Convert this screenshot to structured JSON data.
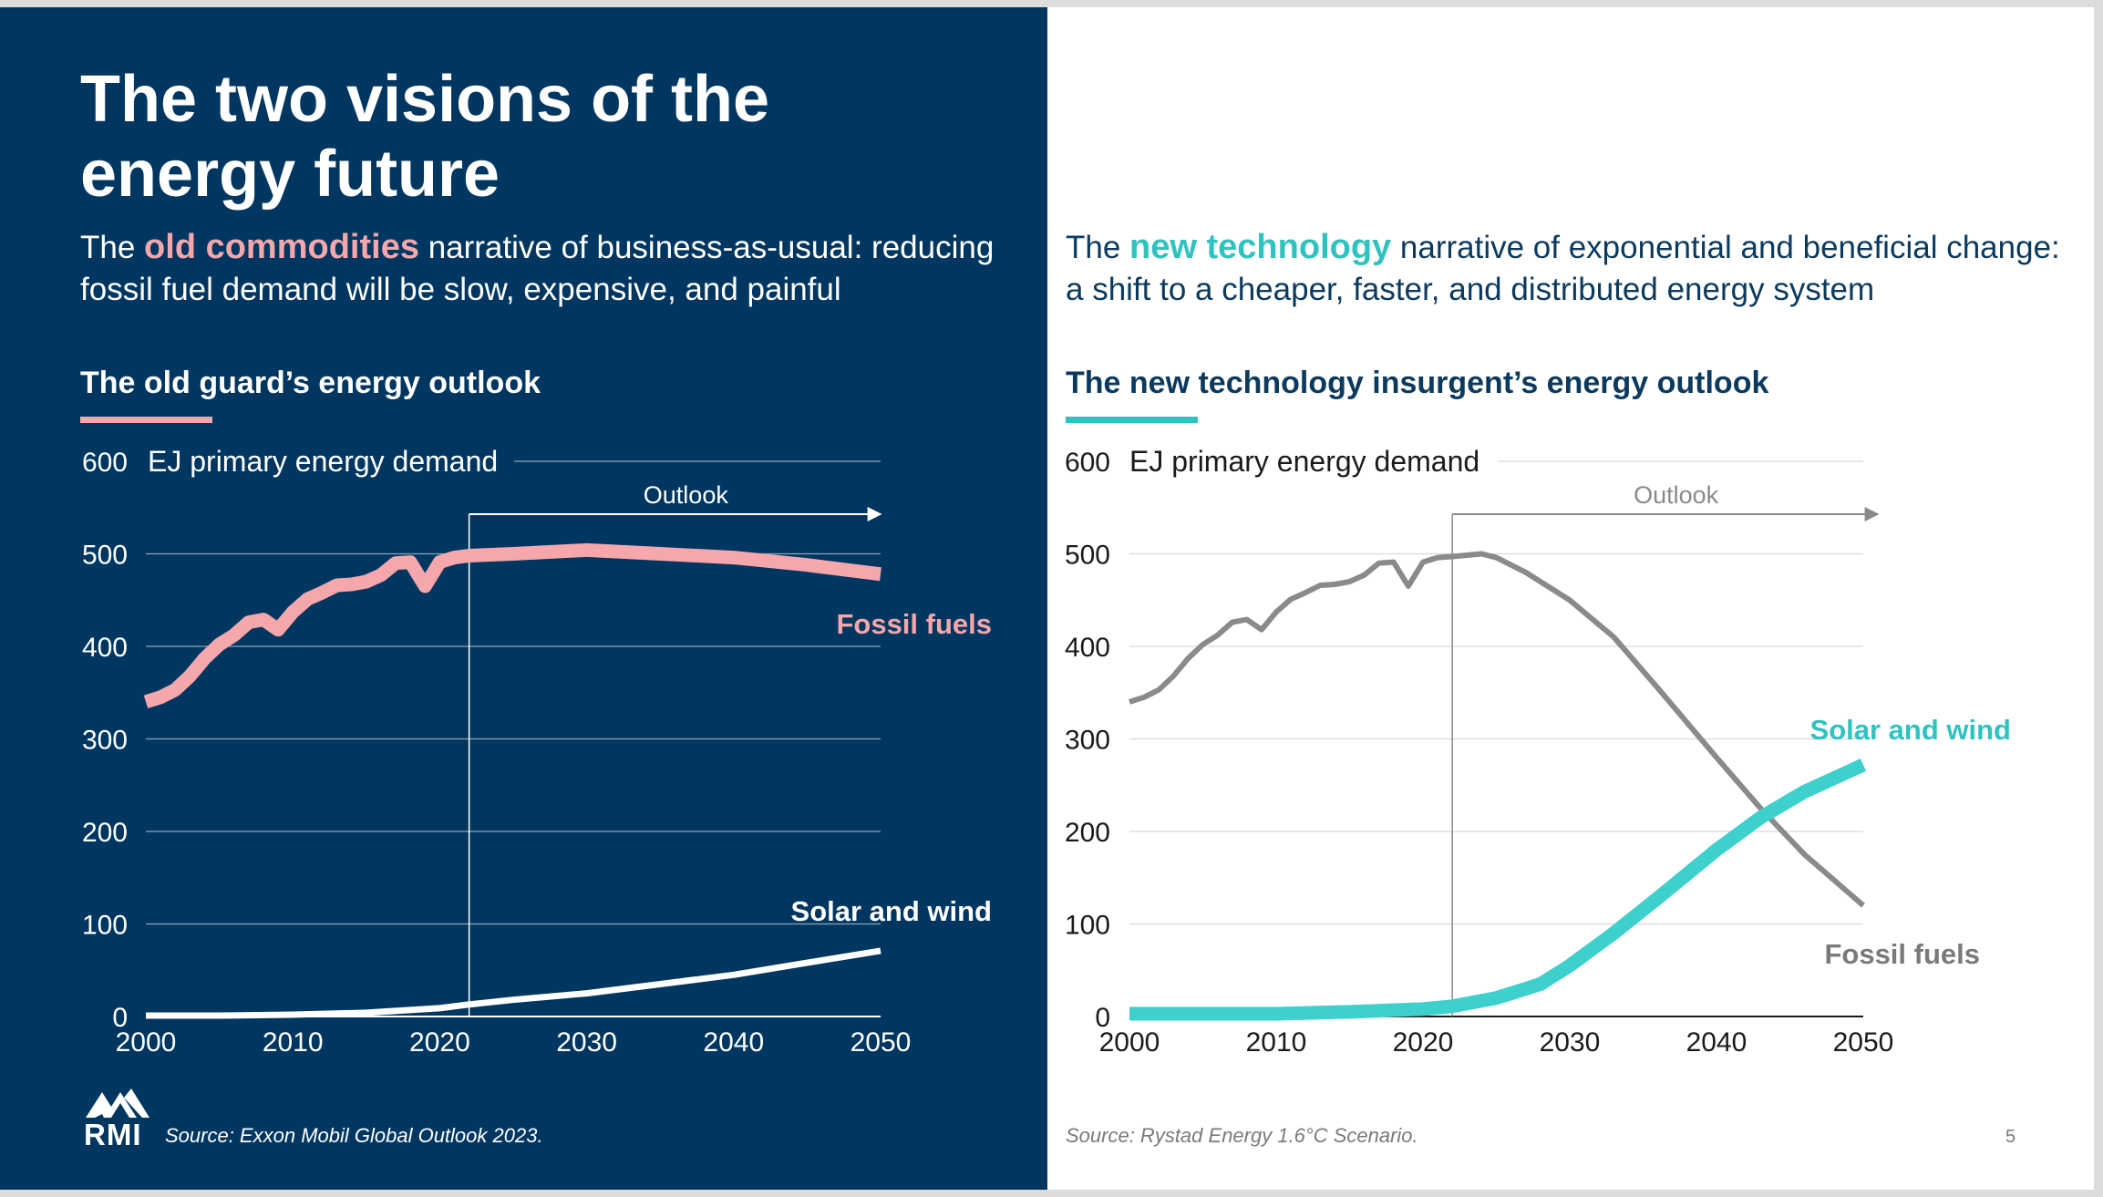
{
  "title": "The two visions of the energy future",
  "left": {
    "subtitle_pre": "The ",
    "subtitle_highlight": "old commodities",
    "subtitle_post": " narrative of business-as-usual: reducing fossil fuel demand will be slow, expensive, and painful",
    "section_title": "The old guard’s energy outlook",
    "source": "Source: Exxon Mobil Global Outlook 2023."
  },
  "right": {
    "subtitle_pre": "The ",
    "subtitle_highlight": "new technology",
    "subtitle_post": " narrative of exponential and beneficial change: a shift to a cheaper, faster, and distributed energy system",
    "section_title": "The new technology insurgent’s energy outlook",
    "source": "Source: Rystad Energy 1.6°C Scenario."
  },
  "logo_text": "RMI",
  "page_number": "5",
  "colors": {
    "navy": "#003660",
    "pink": "#f5a7ac",
    "teal": "#2fc3c0",
    "grey_line": "#8a8a8a"
  },
  "chart_data": [
    {
      "type": "line",
      "title": "The old guard’s energy outlook",
      "ylabel": "EJ primary energy demand",
      "ylim": [
        0,
        600
      ],
      "yticks": [
        "0",
        "100",
        "200",
        "300",
        "400",
        "500",
        "600"
      ],
      "xticks": [
        "2000",
        "2010",
        "2020",
        "2030",
        "2040",
        "2050"
      ],
      "xlim": [
        2000,
        2050
      ],
      "grid": true,
      "annotation": "Outlook",
      "outlook_start": 2022,
      "series": [
        {
          "name": "Fossil fuels",
          "x": [
            2000,
            2001,
            2002,
            2003,
            2004,
            2005,
            2006,
            2007,
            2008,
            2009,
            2010,
            2011,
            2012,
            2013,
            2014,
            2015,
            2016,
            2017,
            2018,
            2019,
            2020,
            2021,
            2022,
            2025,
            2030,
            2035,
            2040,
            2045,
            2050
          ],
          "y": [
            340,
            345,
            353,
            368,
            387,
            402,
            412,
            426,
            429,
            418,
            437,
            451,
            458,
            466,
            467,
            470,
            477,
            490,
            491,
            465,
            491,
            496,
            498,
            500,
            504,
            500,
            496,
            488,
            478
          ]
        },
        {
          "name": "Solar and wind",
          "x": [
            2000,
            2005,
            2010,
            2015,
            2020,
            2022,
            2025,
            2030,
            2035,
            2040,
            2045,
            2050
          ],
          "y": [
            1,
            1,
            2,
            4,
            9,
            13,
            18,
            25,
            35,
            45,
            58,
            71
          ]
        }
      ]
    },
    {
      "type": "line",
      "title": "The new technology insurgent’s energy outlook",
      "ylabel": "EJ primary energy demand",
      "ylim": [
        0,
        600
      ],
      "yticks": [
        "0",
        "100",
        "200",
        "300",
        "400",
        "500",
        "600"
      ],
      "xticks": [
        "2000",
        "2010",
        "2020",
        "2030",
        "2040",
        "2050"
      ],
      "xlim": [
        2000,
        2050
      ],
      "grid": true,
      "annotation": "Outlook",
      "outlook_start": 2022,
      "series": [
        {
          "name": "Fossil fuels",
          "x": [
            2000,
            2001,
            2002,
            2003,
            2004,
            2005,
            2006,
            2007,
            2008,
            2009,
            2010,
            2011,
            2012,
            2013,
            2014,
            2015,
            2016,
            2017,
            2018,
            2019,
            2020,
            2021,
            2022,
            2024,
            2025,
            2027,
            2030,
            2033,
            2036,
            2040,
            2043,
            2046,
            2050
          ],
          "y": [
            340,
            345,
            353,
            368,
            387,
            402,
            412,
            426,
            429,
            418,
            437,
            451,
            458,
            466,
            467,
            470,
            477,
            490,
            491,
            465,
            491,
            496,
            497,
            500,
            496,
            480,
            450,
            410,
            355,
            280,
            225,
            175,
            120
          ]
        },
        {
          "name": "Solar and wind",
          "x": [
            2000,
            2005,
            2010,
            2015,
            2020,
            2022,
            2025,
            2028,
            2030,
            2033,
            2036,
            2040,
            2043,
            2046,
            2050
          ],
          "y": [
            3,
            3,
            3,
            5,
            8,
            11,
            20,
            35,
            55,
            90,
            128,
            180,
            215,
            243,
            272
          ]
        }
      ]
    }
  ]
}
